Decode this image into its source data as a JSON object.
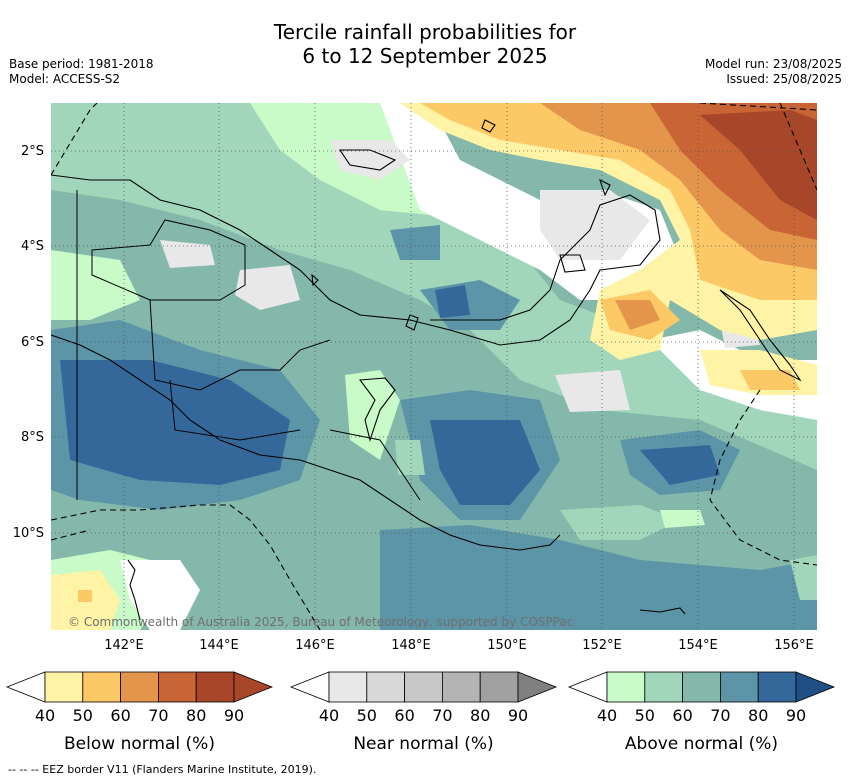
{
  "title_line1": "Tercile rainfall probabilities for",
  "title_line2": "6 to 12 September 2025",
  "meta": {
    "base_period": "Base period: 1981-2018",
    "model": "Model: ACCESS-S2",
    "model_run": "Model run: 23/08/2025",
    "issued": "Issued: 25/08/2025"
  },
  "axes": {
    "lat_labels": [
      "2°S",
      "4°S",
      "6°S",
      "8°S",
      "10°S"
    ],
    "lon_labels": [
      "142°E",
      "144°E",
      "146°E",
      "148°E",
      "150°E",
      "152°E",
      "154°E",
      "156°E"
    ]
  },
  "copyright": "© Commonwealth of Australia 2025, Bureau of Meteorology, supported by COSPPac",
  "colorbars": [
    {
      "title": "Below normal (%)",
      "ticks": [
        "40",
        "50",
        "60",
        "70",
        "80",
        "90"
      ],
      "colors": [
        "#fff3a6",
        "#fdc967",
        "#e3964b",
        "#c96535",
        "#a84629",
        "#a84629"
      ]
    },
    {
      "title": "Near normal (%)",
      "ticks": [
        "40",
        "50",
        "60",
        "70",
        "80",
        "90"
      ],
      "colors": [
        "#e8e8e8",
        "#d8d8d8",
        "#c8c8c8",
        "#b4b4b4",
        "#a0a0a0",
        "#808080"
      ]
    },
    {
      "title": "Above normal (%)",
      "ticks": [
        "40",
        "50",
        "60",
        "70",
        "80",
        "90"
      ],
      "colors": [
        "#c9fbc9",
        "#a1d6bb",
        "#84b8aa",
        "#5d95a8",
        "#35689a",
        "#1f4f85"
      ]
    }
  ],
  "footnote": "-- -- -- EEZ border V11 (Flanders Marine Institute, 2019)."
}
